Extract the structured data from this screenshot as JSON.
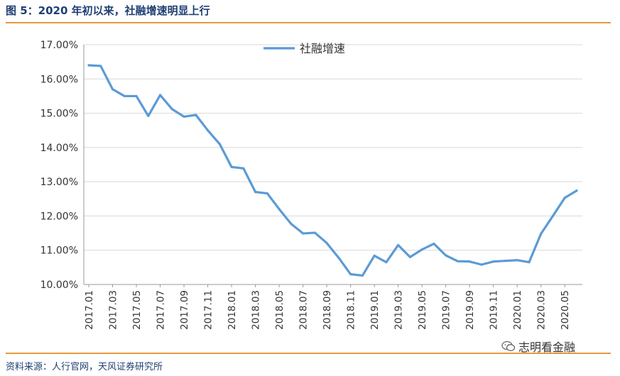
{
  "figure": {
    "title": "图 5：2020 年初以来，社融增速明显上行",
    "source": "资料来源：人行官网，天风证券研究所",
    "watermark": "志明看金融",
    "watermark_icon": "wechat-icon"
  },
  "colors": {
    "series": "#5b9bd5",
    "rule": "#e59a3a",
    "title": "#1f3f73",
    "grid": "#d9d9d9"
  },
  "chart_data": {
    "type": "line",
    "title": "",
    "xlabel": "",
    "ylabel": "",
    "ylim": [
      10,
      17
    ],
    "y_ticks": [
      "10.00%",
      "11.00%",
      "12.00%",
      "13.00%",
      "14.00%",
      "15.00%",
      "16.00%",
      "17.00%"
    ],
    "grid": "horizontal",
    "legend_position": "top-center",
    "x": [
      "2017.01",
      "2017.02",
      "2017.03",
      "2017.04",
      "2017.05",
      "2017.06",
      "2017.07",
      "2017.08",
      "2017.09",
      "2017.10",
      "2017.11",
      "2017.12",
      "2018.01",
      "2018.02",
      "2018.03",
      "2018.04",
      "2018.05",
      "2018.06",
      "2018.07",
      "2018.08",
      "2018.09",
      "2018.10",
      "2018.11",
      "2018.12",
      "2019.01",
      "2019.02",
      "2019.03",
      "2019.04",
      "2019.05",
      "2019.06",
      "2019.07",
      "2019.08",
      "2019.09",
      "2019.10",
      "2019.11",
      "2019.12",
      "2020.01",
      "2020.02",
      "2020.03",
      "2020.04",
      "2020.05",
      "2020.06"
    ],
    "x_tick_labels": [
      "2017.01",
      "2017.03",
      "2017.05",
      "2017.07",
      "2017.09",
      "2017.11",
      "2018.01",
      "2018.03",
      "2018.05",
      "2018.07",
      "2018.09",
      "2018.11",
      "2019.01",
      "2019.03",
      "2019.05",
      "2019.07",
      "2019.09",
      "2019.11",
      "2020.01",
      "2020.03",
      "2020.05"
    ],
    "series": [
      {
        "name": "社融增速",
        "values": [
          16.4,
          16.38,
          15.7,
          15.5,
          15.5,
          14.92,
          15.53,
          15.12,
          14.9,
          14.95,
          14.5,
          14.1,
          13.43,
          13.39,
          12.7,
          12.66,
          12.2,
          11.77,
          11.49,
          11.51,
          11.21,
          10.78,
          10.3,
          10.26,
          10.84,
          10.65,
          11.15,
          10.8,
          11.02,
          11.19,
          10.85,
          10.68,
          10.67,
          10.58,
          10.67,
          10.69,
          10.71,
          10.65,
          11.48,
          12.0,
          12.53,
          12.74
        ]
      }
    ]
  }
}
